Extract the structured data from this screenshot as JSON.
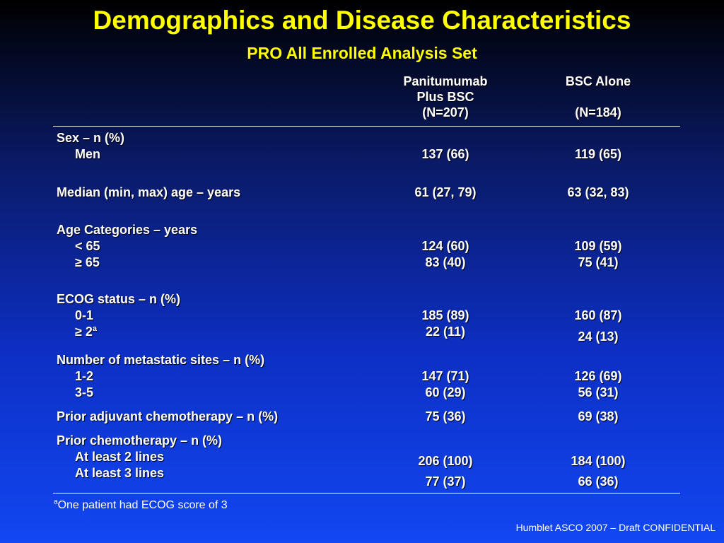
{
  "title": "Demographics and Disease Characteristics",
  "subtitle": "PRO All Enrolled Analysis Set",
  "columns": {
    "pan": {
      "line1": "Panitumumab",
      "line2": "Plus BSC",
      "line3": "(N=207)"
    },
    "bsc": {
      "line1": "BSC Alone",
      "line3": "(N=184)"
    }
  },
  "rows": {
    "sex": {
      "label": "Sex – n (%)",
      "men": "Men",
      "men_pan": "137 (66)",
      "men_bsc": "119 (65)"
    },
    "age_median": {
      "label": "Median (min, max) age – years",
      "pan": "61 (27, 79)",
      "bsc": "63 (32, 83)"
    },
    "age_cat": {
      "label": "Age Categories – years",
      "lt65": "< 65",
      "ge65": "≥ 65",
      "lt65_pan": "124 (60)",
      "ge65_pan": "83 (40)",
      "lt65_bsc": "109 (59)",
      "ge65_bsc": "75 (41)"
    },
    "ecog": {
      "label": "ECOG status – n (%)",
      "g01": "0-1",
      "g2": "≥ 2",
      "g2_sup": "a",
      "g01_pan": "185 (89)",
      "g2_pan": "22 (11)",
      "g01_bsc": "160 (87)",
      "g2_bsc": "24 (13)"
    },
    "meta": {
      "label": "Number of metastatic sites – n (%)",
      "s12": "1-2",
      "s35": "3-5",
      "s12_pan": "147 (71)",
      "s35_pan": "60 (29)",
      "s12_bsc": "126 (69)",
      "s35_bsc": "56 (31)"
    },
    "adj": {
      "label": "Prior adjuvant chemotherapy – n (%)",
      "pan": "75 (36)",
      "bsc": "69 (38)"
    },
    "chemo": {
      "label": "Prior chemotherapy – n (%)",
      "l2": "At least 2 lines",
      "l3": "At least 3 lines",
      "l2_pan": "206 (100)",
      "l3_pan": "77 (37)",
      "l2_bsc": "184 (100)",
      "l3_bsc": "66 (36)"
    }
  },
  "footnote": {
    "sup": "a",
    "text": "One patient had ECOG score of 3"
  },
  "confidential": "Humblet ASCO 2007 – Draft  CONFIDENTIAL"
}
